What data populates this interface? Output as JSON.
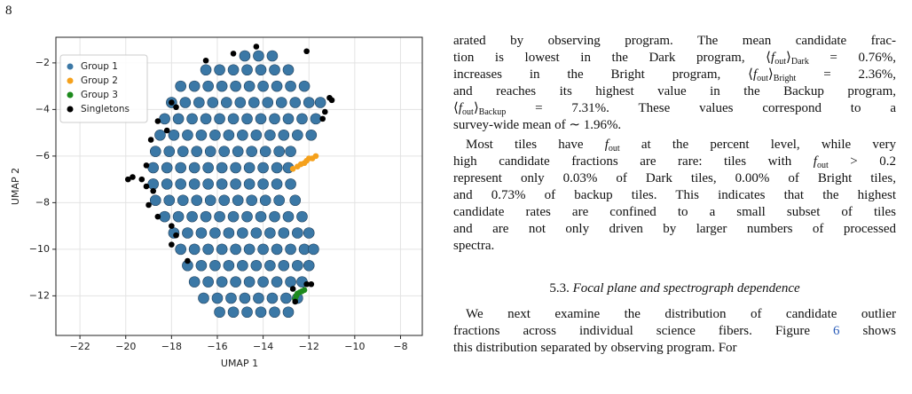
{
  "page_number": "8",
  "chart_data": {
    "type": "scatter",
    "xlabel": "UMAP 1",
    "ylabel": "UMAP 2",
    "xlim": [
      -23.05,
      -7.05
    ],
    "ylim": [
      -13.7,
      -0.9
    ],
    "xticks": [
      {
        "value": -22,
        "label": "−22"
      },
      {
        "value": -20,
        "label": "−20"
      },
      {
        "value": -18,
        "label": "−18"
      },
      {
        "value": -16,
        "label": "−16"
      },
      {
        "value": -14,
        "label": "−14"
      },
      {
        "value": -12,
        "label": "−12"
      },
      {
        "value": -10,
        "label": "−10"
      },
      {
        "value": -8,
        "label": "−8"
      }
    ],
    "yticks": [
      {
        "value": -12,
        "label": "−12"
      },
      {
        "value": -10,
        "label": "−10"
      },
      {
        "value": -8,
        "label": "−8"
      },
      {
        "value": -6,
        "label": "−6"
      },
      {
        "value": -4,
        "label": "−4"
      },
      {
        "value": -2,
        "label": "−2"
      }
    ],
    "grid": true,
    "legend": "upper left",
    "series": [
      {
        "name": "Group 1",
        "color": "#3b78a6",
        "x": [
          -14.8,
          -14.2,
          -13.6,
          -16.5,
          -15.9,
          -15.3,
          -14.7,
          -14.1,
          -13.5,
          -12.9,
          -17.6,
          -17.0,
          -16.4,
          -15.8,
          -15.2,
          -14.6,
          -14.0,
          -13.4,
          -12.8,
          -12.2,
          -18.0,
          -17.4,
          -16.8,
          -16.2,
          -15.6,
          -15.0,
          -14.4,
          -13.8,
          -13.2,
          -12.6,
          -12.0,
          -11.5,
          -18.3,
          -17.7,
          -17.1,
          -16.5,
          -15.9,
          -15.3,
          -14.7,
          -14.1,
          -13.5,
          -12.9,
          -12.3,
          -11.7,
          -18.5,
          -17.9,
          -17.3,
          -16.7,
          -16.1,
          -15.5,
          -14.9,
          -14.3,
          -13.7,
          -13.1,
          -12.5,
          -11.9,
          -18.7,
          -18.1,
          -17.5,
          -16.9,
          -16.3,
          -15.7,
          -15.1,
          -14.5,
          -13.9,
          -13.3,
          -12.8,
          -18.8,
          -18.2,
          -17.6,
          -17.0,
          -16.4,
          -15.8,
          -15.2,
          -14.6,
          -14.0,
          -13.4,
          -12.9,
          -18.8,
          -18.2,
          -17.6,
          -17.0,
          -16.4,
          -15.8,
          -15.2,
          -14.6,
          -14.0,
          -13.4,
          -12.8,
          -18.7,
          -18.1,
          -17.5,
          -16.9,
          -16.3,
          -15.7,
          -15.1,
          -14.5,
          -13.9,
          -13.3,
          -12.6,
          -18.3,
          -17.7,
          -17.1,
          -16.5,
          -15.9,
          -15.3,
          -14.7,
          -14.1,
          -13.5,
          -12.9,
          -12.3,
          -17.9,
          -17.3,
          -16.7,
          -16.1,
          -15.5,
          -14.9,
          -14.3,
          -13.7,
          -13.1,
          -12.5,
          -12.0,
          -17.6,
          -17.0,
          -16.4,
          -15.8,
          -15.2,
          -14.6,
          -14.0,
          -13.4,
          -12.8,
          -12.2,
          -11.8,
          -17.3,
          -16.7,
          -16.1,
          -15.5,
          -14.9,
          -14.3,
          -13.7,
          -13.1,
          -12.5,
          -12.0,
          -17.0,
          -16.4,
          -15.8,
          -15.2,
          -14.6,
          -14.0,
          -13.4,
          -12.8,
          -12.3,
          -16.6,
          -16.0,
          -15.4,
          -14.8,
          -14.2,
          -13.6,
          -13.0,
          -12.5,
          -15.9,
          -15.3,
          -14.7,
          -14.1,
          -13.5,
          -12.9
        ],
        "values": [
          -1.7,
          -1.7,
          -1.7,
          -2.3,
          -2.3,
          -2.3,
          -2.3,
          -2.3,
          -2.3,
          -2.3,
          -3.0,
          -3.0,
          -3.0,
          -3.0,
          -3.0,
          -3.0,
          -3.0,
          -3.0,
          -3.0,
          -3.0,
          -3.7,
          -3.7,
          -3.7,
          -3.7,
          -3.7,
          -3.7,
          -3.7,
          -3.7,
          -3.7,
          -3.7,
          -3.7,
          -3.7,
          -4.4,
          -4.4,
          -4.4,
          -4.4,
          -4.4,
          -4.4,
          -4.4,
          -4.4,
          -4.4,
          -4.4,
          -4.4,
          -4.4,
          -5.1,
          -5.1,
          -5.1,
          -5.1,
          -5.1,
          -5.1,
          -5.1,
          -5.1,
          -5.1,
          -5.1,
          -5.1,
          -5.1,
          -5.8,
          -5.8,
          -5.8,
          -5.8,
          -5.8,
          -5.8,
          -5.8,
          -5.8,
          -5.8,
          -5.8,
          -5.8,
          -6.5,
          -6.5,
          -6.5,
          -6.5,
          -6.5,
          -6.5,
          -6.5,
          -6.5,
          -6.5,
          -6.5,
          -6.5,
          -7.2,
          -7.2,
          -7.2,
          -7.2,
          -7.2,
          -7.2,
          -7.2,
          -7.2,
          -7.2,
          -7.2,
          -7.2,
          -7.9,
          -7.9,
          -7.9,
          -7.9,
          -7.9,
          -7.9,
          -7.9,
          -7.9,
          -7.9,
          -7.9,
          -7.9,
          -8.6,
          -8.6,
          -8.6,
          -8.6,
          -8.6,
          -8.6,
          -8.6,
          -8.6,
          -8.6,
          -8.6,
          -8.6,
          -9.3,
          -9.3,
          -9.3,
          -9.3,
          -9.3,
          -9.3,
          -9.3,
          -9.3,
          -9.3,
          -9.3,
          -9.3,
          -10.0,
          -10.0,
          -10.0,
          -10.0,
          -10.0,
          -10.0,
          -10.0,
          -10.0,
          -10.0,
          -10.0,
          -10.0,
          -10.7,
          -10.7,
          -10.7,
          -10.7,
          -10.7,
          -10.7,
          -10.7,
          -10.7,
          -10.7,
          -10.7,
          -11.4,
          -11.4,
          -11.4,
          -11.4,
          -11.4,
          -11.4,
          -11.4,
          -11.4,
          -11.4,
          -12.1,
          -12.1,
          -12.1,
          -12.1,
          -12.1,
          -12.1,
          -12.1,
          -12.1,
          -12.7,
          -12.7,
          -12.7,
          -12.7,
          -12.7,
          -12.7
        ]
      },
      {
        "name": "Group 2",
        "color": "#f5a11c",
        "x": [
          -12.7,
          -12.5,
          -12.35,
          -12.2,
          -12.1,
          -12.0,
          -11.85,
          -11.7
        ],
        "values": [
          -6.55,
          -6.45,
          -6.35,
          -6.3,
          -6.2,
          -6.1,
          -6.1,
          -6.0
        ]
      },
      {
        "name": "Group 3",
        "color": "#1d8a1d",
        "x": [
          -12.6,
          -12.55,
          -12.5,
          -12.4,
          -12.3,
          -12.2
        ],
        "values": [
          -12.15,
          -12.0,
          -11.9,
          -11.85,
          -11.8,
          -11.75
        ]
      },
      {
        "name": "Singletons",
        "color": "#000000",
        "x": [
          -18.0,
          -17.8,
          -18.6,
          -18.2,
          -18.9,
          -19.1,
          -19.7,
          -19.9,
          -19.3,
          -19.1,
          -18.8,
          -19.0,
          -18.6,
          -18.0,
          -17.8,
          -11.1,
          -11.0,
          -11.3,
          -11.4,
          -14.3,
          -15.3,
          -16.5,
          -12.1,
          -12.1,
          -11.9,
          -12.7,
          -12.6,
          -17.3,
          -18.0
        ],
        "values": [
          -3.7,
          -3.9,
          -4.5,
          -4.9,
          -5.3,
          -6.4,
          -6.9,
          -7.0,
          -7.0,
          -7.3,
          -7.5,
          -8.1,
          -8.6,
          -9.0,
          -9.4,
          -3.5,
          -3.6,
          -4.1,
          -4.4,
          -1.3,
          -1.6,
          -1.9,
          -1.5,
          -11.5,
          -11.5,
          -11.7,
          -12.25,
          -10.5,
          -9.8
        ]
      }
    ]
  },
  "text": {
    "paragraphs": [
      {
        "lines": [
          [
            "arated by observing program. The mean candidate frac-"
          ],
          [
            "tion is lowest in the Dark program, ⟨",
            {
              "it": "f"
            },
            {
              "sub": "out"
            },
            "⟩",
            {
              "sub": "Dark"
            },
            " = 0.76%,"
          ],
          [
            "increases in the Bright program, ⟨",
            {
              "it": "f"
            },
            {
              "sub": "out"
            },
            "⟩",
            {
              "sub": "Bright"
            },
            " = 2.36%,"
          ],
          [
            "and reaches its highest value in the Backup program,"
          ],
          [
            "⟨",
            {
              "it": "f"
            },
            {
              "sub": "out"
            },
            "⟩",
            {
              "sub": "Backup"
            },
            " = 7.31%. These values correspond to a"
          ],
          [
            "survey-wide mean of ∼ 1.96%."
          ]
        ]
      },
      {
        "lines": [
          [
            "Most tiles have ",
            {
              "it": "f"
            },
            {
              "sub": "out"
            },
            " at the percent level, while very"
          ],
          [
            "high candidate fractions are rare: tiles with ",
            {
              "it": "f"
            },
            {
              "sub": "out"
            },
            " > 0.2"
          ],
          [
            "represent only 0.03% of Dark tiles, 0.00% of Bright tiles,"
          ],
          [
            "and 0.73% of backup tiles. This indicates that the highest"
          ],
          [
            "candidate rates are confined to a small subset of tiles"
          ],
          [
            "and are not only driven by larger numbers of processed"
          ],
          [
            "spectra."
          ]
        ]
      },
      {
        "lines": [
          [
            "We next examine the distribution of candidate outlier"
          ],
          [
            "fractions across individual science fibers. Figure ",
            {
              "link": "6"
            },
            " shows"
          ],
          [
            "this distribution separated by observing program. For"
          ]
        ]
      }
    ],
    "section_heading": {
      "number": "5.3.",
      "title": "Focal plane and spectrograph dependence"
    }
  }
}
